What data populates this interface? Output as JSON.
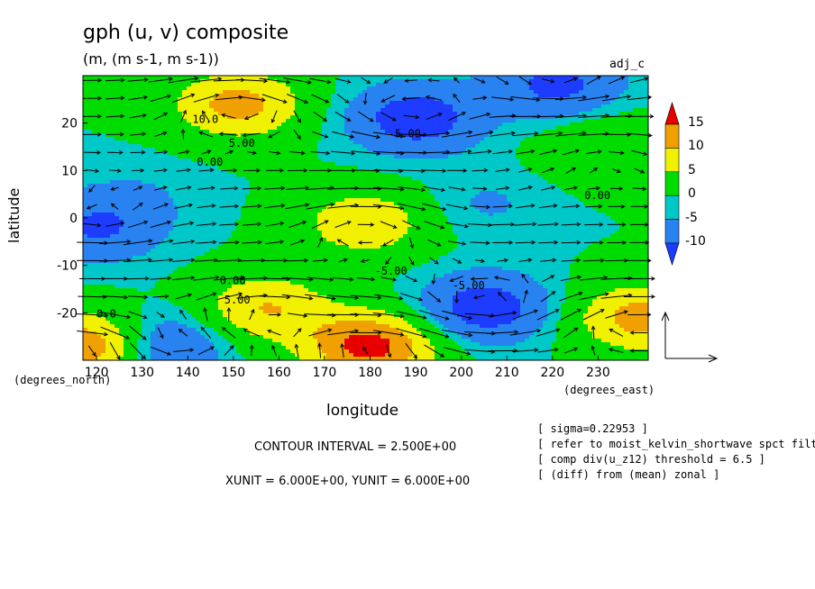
{
  "title": "gph (u, v) composite",
  "units": "(m, (m s-1, m s-1))",
  "tag": "adj_c",
  "notes": [
    "[ sigma=0.22953 ]",
    "[ refer to moist_kelvin_shortwave spct filte",
    "[ comp div(u_z12) threshold = 6.5 ]",
    "[ (diff) from (mean) zonal ]"
  ],
  "contour_interval_text": "CONTOUR INTERVAL = 2.500E+00",
  "vector_unit_text": "XUNIT = 6.000E+00, YUNIT = 6.000E+00",
  "colors": {
    "bg": "#ffffff",
    "levels": [
      "#1e3cff",
      "#2882f0",
      "#00c8c8",
      "#00dc00",
      "#f0f000",
      "#f0a000",
      "#e60000"
    ]
  },
  "chart_data": {
    "type": "heatmap",
    "overlay": "vectors",
    "xlabel": "longitude",
    "ylabel": "latitude",
    "xunit": "(degrees_east)",
    "yunit": "(degrees_north)",
    "xlim": [
      117,
      241
    ],
    "ylim": [
      -30,
      30
    ],
    "xticks": [
      120,
      130,
      140,
      150,
      160,
      170,
      180,
      190,
      200,
      210,
      220,
      230
    ],
    "xticklabels": [
      "120",
      "130",
      "140",
      "150",
      "160",
      "170",
      "180",
      "190",
      "200",
      "210",
      "220",
      "230"
    ],
    "yticks": [
      20,
      10,
      0,
      -10,
      -20
    ],
    "yticklabels": [
      "20",
      "10",
      "0",
      "-10",
      "-20"
    ],
    "colorbar": {
      "ticks": [
        15,
        10,
        5,
        0,
        -5,
        -10
      ],
      "ticklabels": [
        "15",
        "10",
        "5",
        "0",
        "-5",
        "-10"
      ]
    },
    "contour_labels": [
      {
        "text": "10.0",
        "x": 141,
        "y": 20
      },
      {
        "text": "5.00",
        "x": 149,
        "y": 15
      },
      {
        "text": "0.00",
        "x": 142,
        "y": 11
      },
      {
        "text": "-5.00",
        "x": 184,
        "y": 17
      },
      {
        "text": "0.00",
        "x": 227,
        "y": 4
      },
      {
        "text": "-5.00",
        "x": 181,
        "y": -12
      },
      {
        "text": "0.00",
        "x": 147,
        "y": -14
      },
      {
        "text": "5.00",
        "x": 148,
        "y": -18
      },
      {
        "text": "-5.00",
        "x": 198,
        "y": -15
      },
      {
        "text": "0.0",
        "x": 120,
        "y": -21
      }
    ],
    "field_centers": [
      {
        "x": 151,
        "y": 24,
        "value": 12
      },
      {
        "x": 179,
        "y": -1,
        "value": 9
      },
      {
        "x": 157,
        "y": -19,
        "value": 10
      },
      {
        "x": 180,
        "y": -27,
        "value": 17
      },
      {
        "x": 119,
        "y": -27,
        "value": 16
      },
      {
        "x": 239,
        "y": -21,
        "value": 12
      },
      {
        "x": 232,
        "y": 15,
        "value": 5
      },
      {
        "x": 190,
        "y": 21,
        "value": -11
      },
      {
        "x": 205,
        "y": -19,
        "value": -11
      },
      {
        "x": 133,
        "y": -27,
        "value": -10
      },
      {
        "x": 120,
        "y": -2,
        "value": -8
      },
      {
        "x": 221,
        "y": 28,
        "value": -9
      },
      {
        "x": 205,
        "y": 3,
        "value": -3
      },
      {
        "x": 130,
        "y": 5,
        "value": -2
      }
    ]
  }
}
